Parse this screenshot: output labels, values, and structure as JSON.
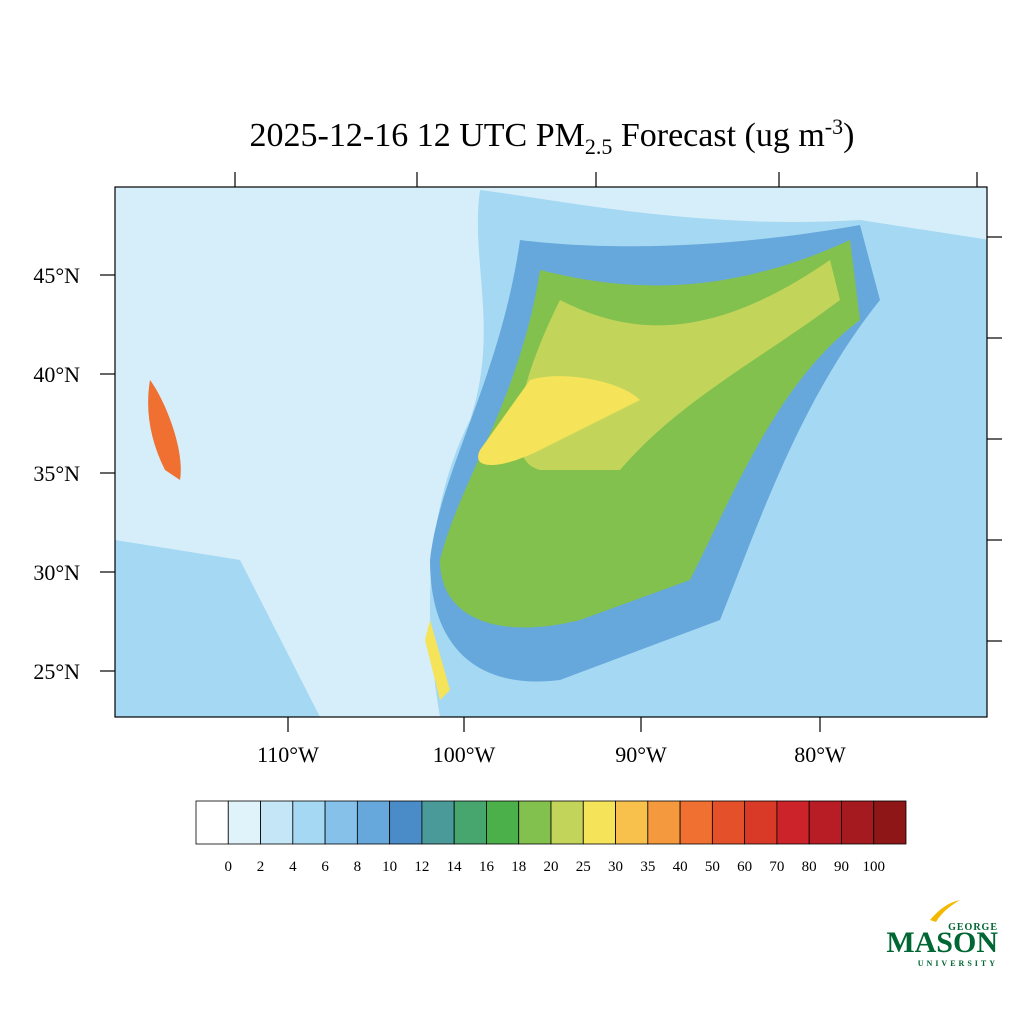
{
  "title": {
    "main": "2025-12-16 12 UTC PM",
    "sub": "2.5",
    "rest": " Forecast (ug m",
    "sup": "-3",
    "end": ")"
  },
  "lat_labels": [
    "45°N",
    "40°N",
    "35°N",
    "30°N",
    "25°N"
  ],
  "lon_labels": [
    "110°W",
    "100°W",
    "90°W",
    "80°W"
  ],
  "colorbar": {
    "levels": [
      "0",
      "2",
      "4",
      "6",
      "8",
      "10",
      "12",
      "14",
      "16",
      "18",
      "20",
      "25",
      "30",
      "35",
      "40",
      "50",
      "60",
      "70",
      "80",
      "90",
      "100"
    ],
    "colors": [
      "#ffffff",
      "#e0f3fb",
      "#c4e6f7",
      "#a5d8f3",
      "#85c1e9",
      "#66a8dc",
      "#4a8cc8",
      "#4a9a9a",
      "#47a56e",
      "#4cb04a",
      "#82c14e",
      "#c2d45a",
      "#f5e35a",
      "#f7c14c",
      "#f4993e",
      "#ef7030",
      "#e4502a",
      "#d93a28",
      "#cc2229",
      "#b81c25",
      "#a51a1f",
      "#8e1616"
    ]
  },
  "logo": {
    "top": "GEORGE",
    "main": "MASON",
    "bottom": "UNIVERSITY"
  }
}
